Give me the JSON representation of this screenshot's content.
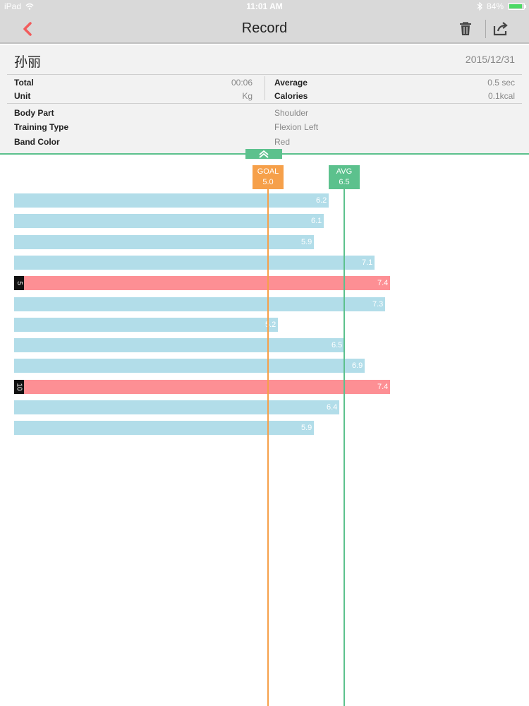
{
  "status_bar": {
    "carrier": "iPad",
    "time": "11:01 AM",
    "battery": "84%"
  },
  "nav": {
    "title": "Record",
    "back_icon": "chevron-left-icon",
    "trash_icon": "trash-icon",
    "share_icon": "share-icon"
  },
  "record": {
    "name": "孙丽",
    "date": "2015/12/31",
    "total_label": "Total",
    "total_value": "00:06",
    "unit_label": "Unit",
    "unit_value": "Kg",
    "average_label": "Average",
    "average_value": "0.5 sec",
    "calories_label": "Calories",
    "calories_value": "0.1kcal",
    "body_part_label": "Body Part",
    "body_part_value": "Shoulder",
    "training_type_label": "Training Type",
    "training_type_value": "Flexion Left",
    "band_color_label": "Band Color",
    "band_color_value": "Red"
  },
  "colors": {
    "bar_normal": "#b2dde9",
    "bar_highlight": "#fd8f94",
    "goal": "#f6a04a",
    "avg": "#5cc18d",
    "accent_back": "#f25c5c"
  },
  "chart_data": {
    "type": "bar",
    "orientation": "horizontal",
    "values": [
      6.2,
      6.1,
      5.9,
      7.1,
      7.4,
      7.3,
      5.2,
      6.5,
      6.9,
      7.4,
      6.4,
      5.9
    ],
    "labels": [
      "6.2",
      "6.1",
      "5.9",
      "7.1",
      "7.4",
      "7.3",
      "5.2",
      "6.5",
      "6.9",
      "7.4",
      "6.4",
      "5.9"
    ],
    "highlighted": [
      {
        "index": 4,
        "label": "5"
      },
      {
        "index": 9,
        "label": "10"
      }
    ],
    "goal": {
      "label": "GOAL",
      "value": 5.0,
      "value_label": "5.0"
    },
    "avg": {
      "label": "AVG",
      "value": 6.5,
      "value_label": "6.5"
    }
  }
}
